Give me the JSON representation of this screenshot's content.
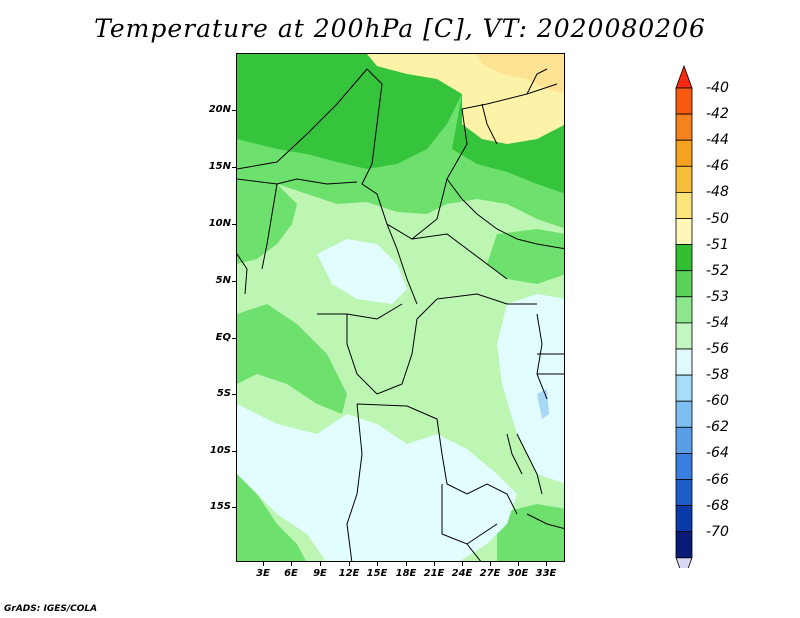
{
  "title": "Temperature at 200hPa [C], VT: 2020080206",
  "credit": "GrADS: IGES/COLA",
  "map": {
    "region": "Central Africa",
    "lat_labels": [
      "20N",
      "15N",
      "10N",
      "5N",
      "EQ",
      "5S",
      "10S",
      "15S"
    ],
    "lon_labels": [
      "3E",
      "6E",
      "9E",
      "12E",
      "15E",
      "18E",
      "21E",
      "24E",
      "27E",
      "30E",
      "33E"
    ]
  },
  "colorbar": {
    "labels": [
      "-40",
      "-42",
      "-44",
      "-46",
      "-48",
      "-50",
      "-51",
      "-52",
      "-53",
      "-54",
      "-56",
      "-58",
      "-60",
      "-62",
      "-64",
      "-66",
      "-68",
      "-70"
    ],
    "colors": [
      "#f52a10",
      "#f55a10",
      "#f5821e",
      "#f5a21e",
      "#f7be3c",
      "#fce47a",
      "#fcf6b8",
      "#32c032",
      "#5ad25a",
      "#8ee68e",
      "#c2f6c2",
      "#e0fafa",
      "#a8dcf8",
      "#7cbef0",
      "#5a9ee8",
      "#3a7ee0",
      "#1c5cc8",
      "#0a3aa8",
      "#0a1c78",
      "#d8d8f4"
    ]
  },
  "legend_colors": {
    "dark_green": "#36c43c",
    "mid_green": "#6ee06e",
    "light_green": "#bdf5b3",
    "pale_cyan": "#e2fdfd",
    "pale_yellow": "#fdf3a8",
    "yellow": "#fde293",
    "light_blue": "#a8d8f8"
  }
}
